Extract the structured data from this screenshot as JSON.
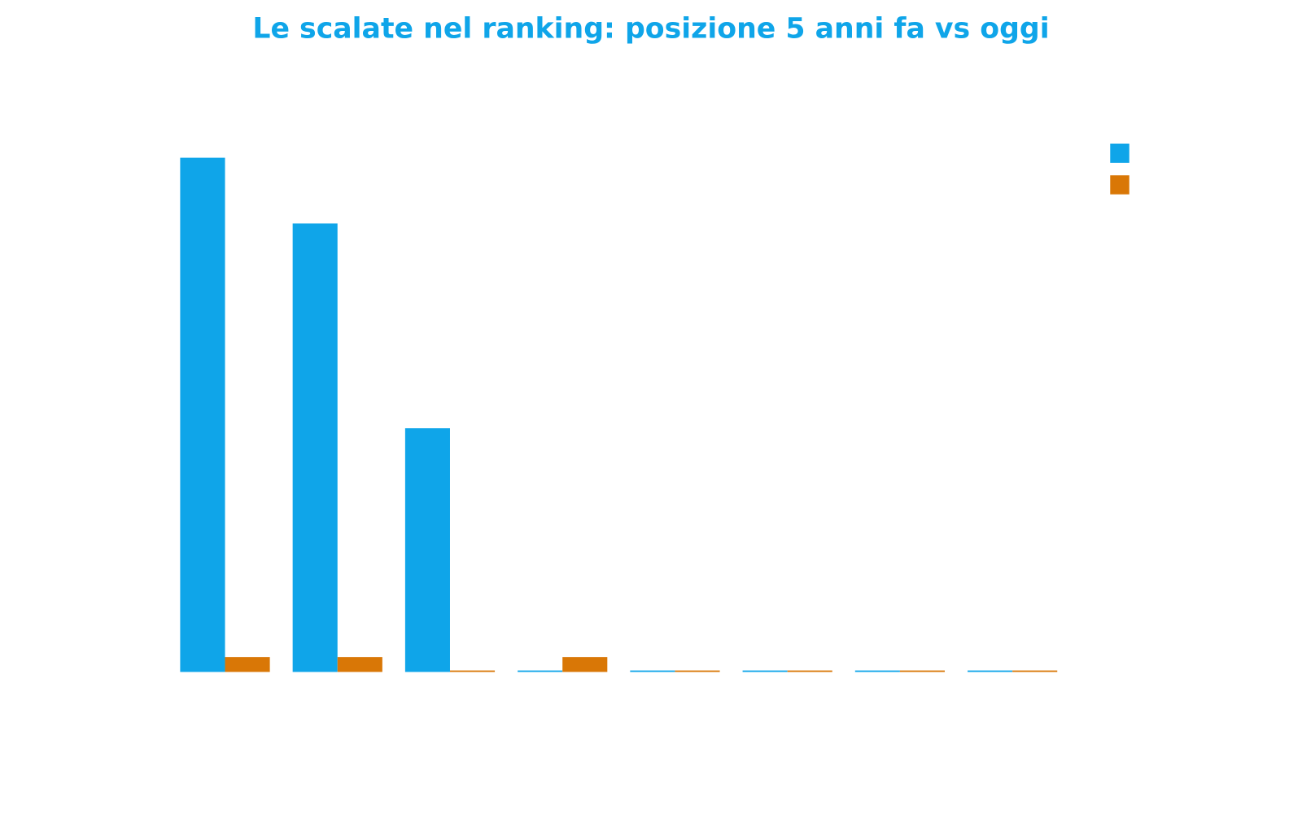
{
  "chart_data": {
    "type": "bar",
    "title": "Le scalate nel ranking: posizione 5 anni fa vs oggi",
    "categories": [
      null,
      null,
      null,
      null,
      null,
      null,
      null,
      null
    ],
    "series": [
      {
        "color": "#0fa5e9",
        "values": [
          344,
          300,
          163,
          1,
          1,
          1,
          1,
          1
        ]
      },
      {
        "color": "#d97706",
        "values": [
          10,
          10,
          1,
          10,
          1,
          1,
          1,
          1
        ]
      }
    ],
    "ylim": [
      0,
      380
    ]
  }
}
